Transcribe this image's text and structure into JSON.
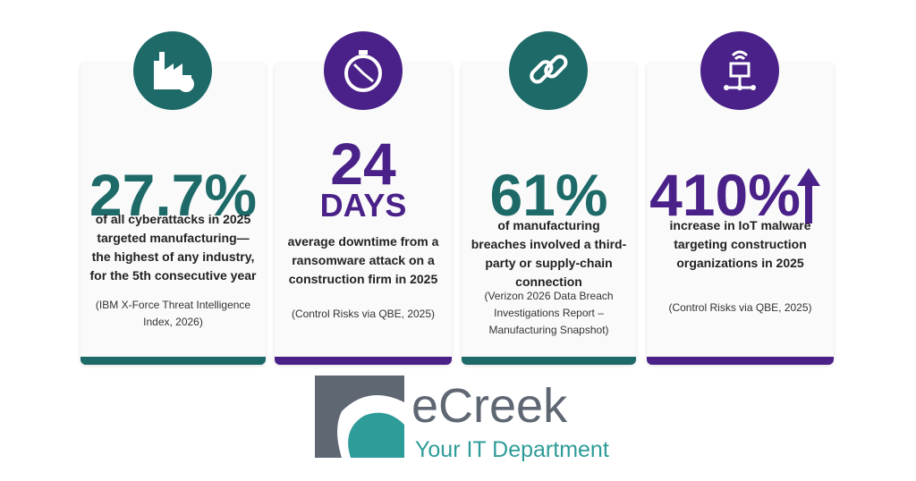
{
  "cards": [
    {
      "stat": "27.7%",
      "description": "of all cyberattacks in 2025 targeted manufacturing—the highest of any industry, for the 5th consecutive year",
      "source": "(IBM X-Force Threat Intelligence Index, 2026)",
      "color": "#1d6a68"
    },
    {
      "stat": "24",
      "unit": "DAYS",
      "description": "average downtime from a ransomware attack on a construction firm in 2025",
      "source": "(Control Risks via QBE, 2025)",
      "color": "#4a2188"
    },
    {
      "stat": "61%",
      "description": "of manufacturing breaches involved a third-party or supply-chain connection",
      "source": "(Verizon 2026 Data Breach Investigations Report – Manufacturing Snapshot)",
      "color": "#1d6a68"
    },
    {
      "stat": "410%",
      "description": "increase in IoT malware targeting construction organizations in 2025",
      "source": "(Control Risks via QBE, 2025)",
      "color": "#4a2188"
    }
  ],
  "logo": {
    "name": "eCreek",
    "tagline": "Your IT Department"
  }
}
